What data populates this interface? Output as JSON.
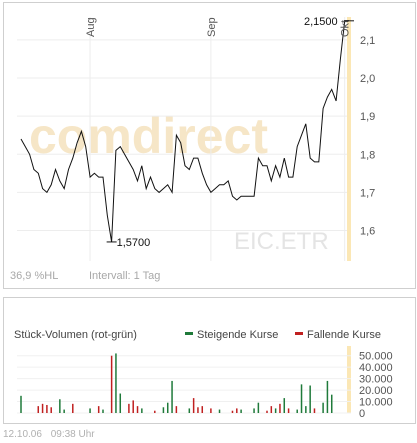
{
  "chart_data": [
    {
      "type": "line",
      "watermark": "comdirect",
      "symbol": "EIC.ETR",
      "x_tick_labels": [
        "Aug",
        "Sep",
        "Okt"
      ],
      "y_ticks": [
        "1,6",
        "1,7",
        "1,8",
        "1,9",
        "2,0",
        "2,1"
      ],
      "ylim": [
        1.52,
        2.16
      ],
      "min_label": "1,5700",
      "max_label": "2,1500",
      "min_value": 1.57,
      "max_value": 2.15,
      "footer_left": "36,9 %HL",
      "footer_interval": "Intervall: 1 Tag",
      "values": [
        1.84,
        1.82,
        1.8,
        1.76,
        1.75,
        1.71,
        1.7,
        1.72,
        1.76,
        1.73,
        1.71,
        1.76,
        1.79,
        1.83,
        1.86,
        1.82,
        1.74,
        1.75,
        1.74,
        1.74,
        1.64,
        1.57,
        1.81,
        1.82,
        1.8,
        1.78,
        1.76,
        1.73,
        1.77,
        1.71,
        1.74,
        1.71,
        1.7,
        1.71,
        1.72,
        1.7,
        1.85,
        1.83,
        1.77,
        1.76,
        1.79,
        1.79,
        1.75,
        1.72,
        1.7,
        1.71,
        1.72,
        1.72,
        1.73,
        1.69,
        1.68,
        1.69,
        1.69,
        1.69,
        1.69,
        1.79,
        1.77,
        1.77,
        1.73,
        1.77,
        1.74,
        1.79,
        1.74,
        1.74,
        1.82,
        1.85,
        1.88,
        1.79,
        1.78,
        1.78,
        1.92,
        1.95,
        1.97,
        1.94,
        2.05,
        2.15,
        2.15
      ]
    },
    {
      "type": "bar",
      "title": "Stück-Volumen (rot-grün)",
      "legend": [
        {
          "name": "Steigende Kurse",
          "color": "#1f7a3a"
        },
        {
          "name": "Fallende Kurse",
          "color": "#c02020"
        }
      ],
      "y_ticks": [
        "50.000",
        "40.000",
        "30.000",
        "20.000",
        "10.000",
        "0"
      ],
      "ylim": [
        0,
        55000
      ],
      "volumes": [
        15000,
        0,
        0,
        0,
        6000,
        8000,
        7000,
        5000,
        0,
        12000,
        3000,
        0,
        8000,
        0,
        0,
        0,
        4000,
        0,
        6000,
        3000,
        0,
        50000,
        52000,
        17000,
        0,
        8000,
        11000,
        6000,
        4000,
        0,
        0,
        2000,
        0,
        5000,
        9000,
        28000,
        6000,
        0,
        0,
        4000,
        13000,
        5000,
        6000,
        0,
        4000,
        0,
        3000,
        0,
        0,
        2000,
        4000,
        3000,
        0,
        0,
        4000,
        9000,
        0,
        2000,
        6000,
        4000,
        8000,
        13000,
        4000,
        0,
        3000,
        25000,
        6000,
        24000,
        4000,
        0,
        9000,
        28000,
        16000,
        0,
        0,
        0,
        0
      ],
      "colors": [
        "g",
        "g",
        "g",
        "g",
        "r",
        "r",
        "r",
        "r",
        "g",
        "g",
        "g",
        "g",
        "r",
        "r",
        "g",
        "g",
        "g",
        "r",
        "r",
        "g",
        "r",
        "r",
        "g",
        "g",
        "r",
        "r",
        "r",
        "r",
        "g",
        "r",
        "g",
        "r",
        "r",
        "g",
        "g",
        "g",
        "r",
        "r",
        "g",
        "g",
        "r",
        "r",
        "r",
        "r",
        "r",
        "g",
        "g",
        "r",
        "g",
        "r",
        "r",
        "g",
        "g",
        "g",
        "g",
        "g",
        "r",
        "r",
        "r",
        "g",
        "r",
        "g",
        "r",
        "g",
        "g",
        "g",
        "g",
        "g",
        "r",
        "r",
        "g",
        "g",
        "g",
        "r",
        "g",
        "g",
        "g"
      ]
    }
  ],
  "footer": {
    "date": "12.10.06",
    "time": "09:38 Uhr"
  }
}
